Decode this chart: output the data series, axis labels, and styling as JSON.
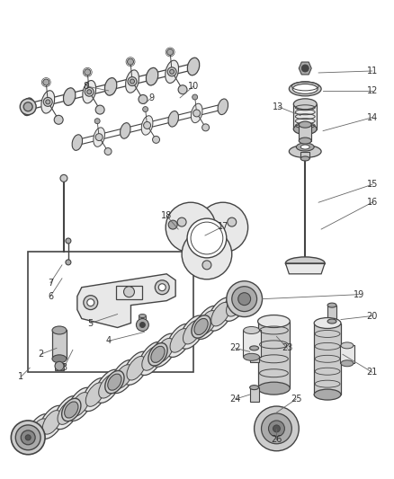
{
  "background_color": "#ffffff",
  "lc": "#444444",
  "fc_light": "#e8e8e8",
  "fc_mid": "#cccccc",
  "fc_dark": "#aaaaaa",
  "fc_darker": "#888888",
  "figsize": [
    4.38,
    5.33
  ],
  "dpi": 100,
  "label_fs": 7,
  "label_color": "#333333",
  "leader_color": "#666666"
}
